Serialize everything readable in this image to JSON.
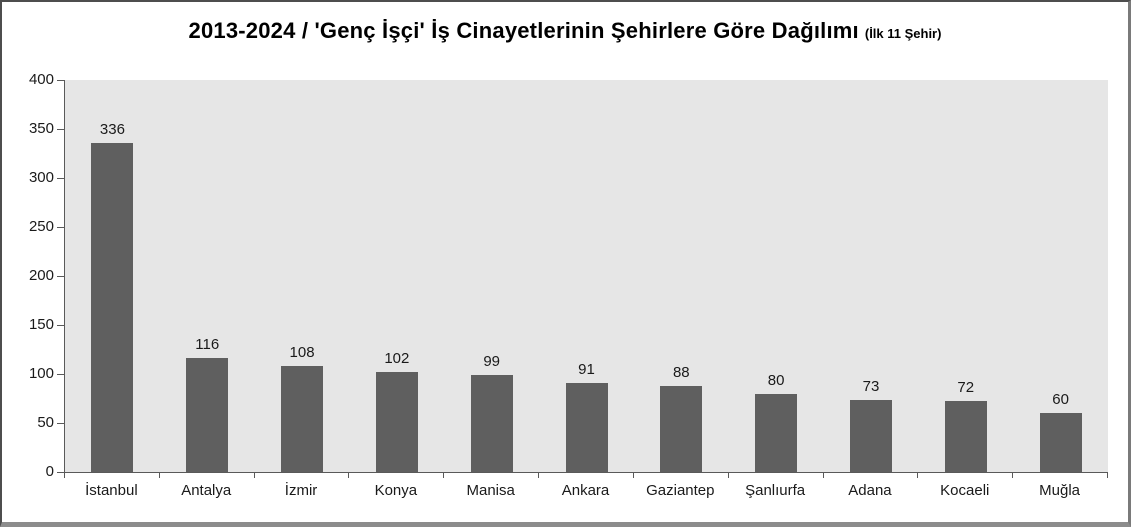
{
  "chart_data": {
    "type": "bar",
    "title": "2013-2024 / 'Genç İşçi' İş Cinayetlerinin Şehirlere Göre Dağılımı",
    "subtitle": "(İlk 11 Şehir)",
    "categories": [
      "İstanbul",
      "Antalya",
      "İzmir",
      "Konya",
      "Manisa",
      "Ankara",
      "Gaziantep",
      "Şanlıurfa",
      "Adana",
      "Kocaeli",
      "Muğla"
    ],
    "values": [
      336,
      116,
      108,
      102,
      99,
      91,
      88,
      80,
      73,
      72,
      60
    ],
    "xlabel": "",
    "ylabel": "",
    "ylim": [
      0,
      400
    ],
    "ytick_step": 50,
    "grid": false,
    "legend": false,
    "data_labels": true,
    "bar_color": "#5f5f5f",
    "plot_bg": "#e6e6e6",
    "axis_color": "#595959",
    "text_color": "#1a1a1a"
  }
}
